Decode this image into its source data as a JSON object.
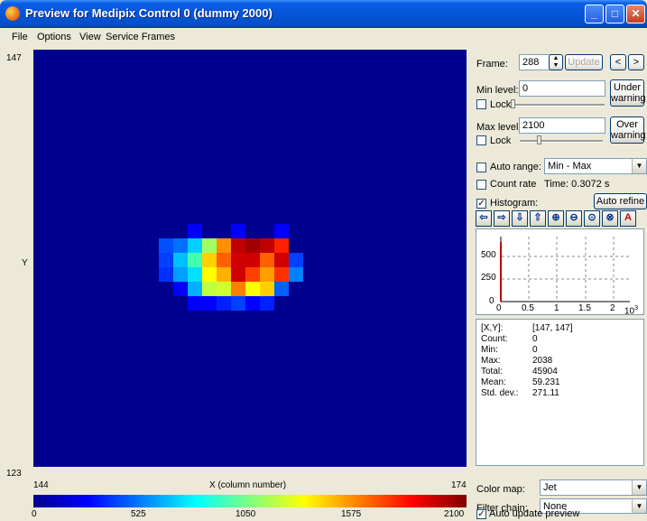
{
  "window": {
    "title": "Preview for Medipix Control 0 (dummy 2000)"
  },
  "titlebar_buttons": {
    "minimize": "_",
    "maximize": "□",
    "close": "✕"
  },
  "menu": [
    "File",
    "Options",
    "View",
    "Service Frames"
  ],
  "plot": {
    "y_top": "147",
    "y_bottom": "123",
    "y_label": "Y",
    "x_left": "144",
    "x_right": "174",
    "x_label": "X (column number)",
    "background": "#00008f"
  },
  "colorbar": {
    "ticks": [
      "0",
      "525",
      "1050",
      "1575",
      "2100"
    ]
  },
  "frame": {
    "label": "Frame:",
    "value": "288",
    "update_label": "Update",
    "prev": "<",
    "next": ">"
  },
  "min_level": {
    "label": "Min level:",
    "value": "0",
    "lock_label": "Lock",
    "warning_button": [
      "Under",
      "warning"
    ]
  },
  "max_level": {
    "label": "Max level:",
    "value": "2100",
    "lock_label": "Lock",
    "warning_button": [
      "Over",
      "warning"
    ]
  },
  "auto_range": {
    "label": "Auto range:",
    "checked": false,
    "selected": "Min - Max"
  },
  "count_rate": {
    "label": "Count rate",
    "checked": false,
    "time_label": "Time: 0.3072 s"
  },
  "histogram": {
    "label": "Histogram:",
    "checked": true,
    "auto_refine": "Auto refine",
    "y_ticks": [
      "500",
      "250",
      "0"
    ],
    "x_ticks": [
      "0",
      "0.5",
      "1",
      "1.5",
      "2"
    ],
    "x_exponent": "10",
    "x_exponent_power": "3"
  },
  "stats": {
    "rows": [
      {
        "k": "[X,Y]:",
        "v": "[147, 147]"
      },
      {
        "k": "Count:",
        "v": "0"
      },
      {
        "k": "Min:",
        "v": "0"
      },
      {
        "k": "Max:",
        "v": "2038"
      },
      {
        "k": "Total:",
        "v": "45904"
      },
      {
        "k": "Mean:",
        "v": "59.231"
      },
      {
        "k": "Std. dev.:",
        "v": "271.11"
      }
    ]
  },
  "color_map": {
    "label": "Color map:",
    "selected": "Jet"
  },
  "filter_chain": {
    "label": "Filter chain:",
    "selected": "None"
  },
  "auto_update": {
    "label": "Auto update preview",
    "checked": true
  }
}
